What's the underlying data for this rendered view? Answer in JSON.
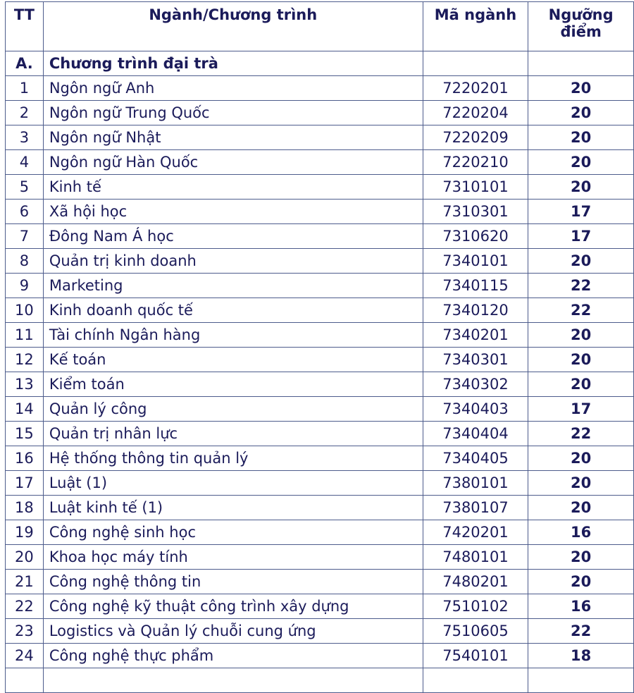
{
  "header": {
    "tt": "TT",
    "program": "Ngành/Chương trình",
    "code": "Mã ngành",
    "threshold": "Ngưỡng điểm"
  },
  "section": {
    "tt": "A.",
    "name": "Chương trình đại trà"
  },
  "rows": [
    {
      "tt": "1",
      "name": "Ngôn ngữ Anh",
      "code": "7220201",
      "score": "20"
    },
    {
      "tt": "2",
      "name": "Ngôn ngữ Trung Quốc",
      "code": "7220204",
      "score": "20"
    },
    {
      "tt": "3",
      "name": "Ngôn ngữ Nhật",
      "code": "7220209",
      "score": "20"
    },
    {
      "tt": "4",
      "name": "Ngôn ngữ Hàn Quốc",
      "code": "7220210",
      "score": "20"
    },
    {
      "tt": "5",
      "name": "Kinh tế",
      "code": "7310101",
      "score": "20"
    },
    {
      "tt": "6",
      "name": "Xã hội học",
      "code": "7310301",
      "score": "17"
    },
    {
      "tt": "7",
      "name": "Đông Nam Á học",
      "code": "7310620",
      "score": "17"
    },
    {
      "tt": "8",
      "name": "Quản trị kinh doanh",
      "code": "7340101",
      "score": "20"
    },
    {
      "tt": "9",
      "name": "Marketing",
      "code": "7340115",
      "score": "22"
    },
    {
      "tt": "10",
      "name": "Kinh doanh quốc tế",
      "code": "7340120",
      "score": "22"
    },
    {
      "tt": "11",
      "name": "Tài chính Ngân hàng",
      "code": "7340201",
      "score": "20"
    },
    {
      "tt": "12",
      "name": "Kế toán",
      "code": "7340301",
      "score": "20"
    },
    {
      "tt": "13",
      "name": "Kiểm toán",
      "code": "7340302",
      "score": "20"
    },
    {
      "tt": "14",
      "name": "Quản lý công",
      "code": "7340403",
      "score": "17"
    },
    {
      "tt": "15",
      "name": "Quản trị nhân lực",
      "code": "7340404",
      "score": "22"
    },
    {
      "tt": "16",
      "name": "Hệ thống thông tin quản lý",
      "code": "7340405",
      "score": "20"
    },
    {
      "tt": "17",
      "name": "Luật (1)",
      "code": "7380101",
      "score": "20"
    },
    {
      "tt": "18",
      "name": "Luật kinh tế (1)",
      "code": "7380107",
      "score": "20"
    },
    {
      "tt": "19",
      "name": "Công nghệ sinh học",
      "code": "7420201",
      "score": "16"
    },
    {
      "tt": "20",
      "name": "Khoa học máy tính",
      "code": "7480101",
      "score": "20"
    },
    {
      "tt": "21",
      "name": "Công nghệ thông tin",
      "code": "7480201",
      "score": "20"
    },
    {
      "tt": "22",
      "name": "Công nghệ kỹ thuật công trình xây dựng",
      "code": "7510102",
      "score": "16"
    },
    {
      "tt": "23",
      "name": "Logistics và Quản lý chuỗi cung ứng",
      "code": "7510605",
      "score": "22"
    },
    {
      "tt": "24",
      "name": "Công nghệ thực phẩm",
      "code": "7540101",
      "score": "18"
    }
  ]
}
